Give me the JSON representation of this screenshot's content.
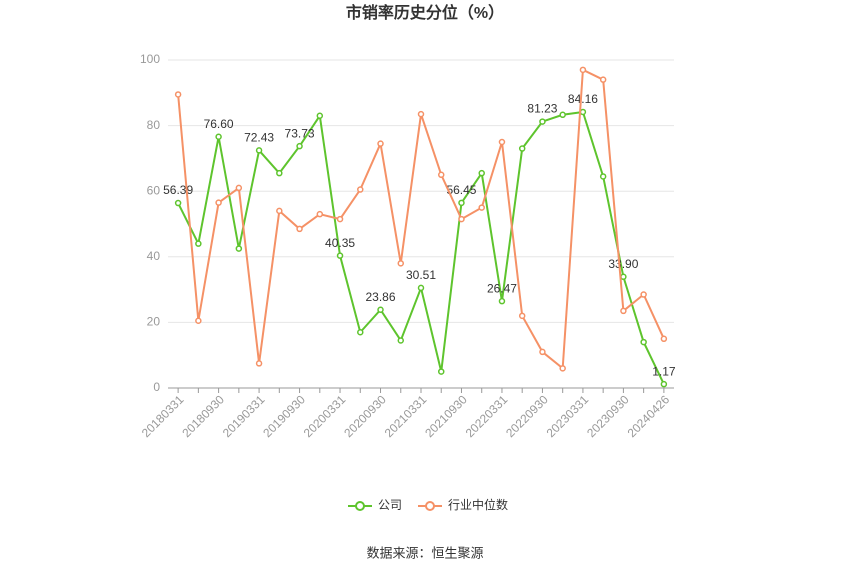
{
  "chart_data": {
    "type": "line",
    "title": "市销率历史分位（%）",
    "source": "数据来源：恒生聚源",
    "categories": [
      "20180331",
      null,
      "20180930",
      null,
      "20190331",
      null,
      "20190930",
      null,
      "20200331",
      null,
      "20200930",
      null,
      "20210331",
      null,
      "20210930",
      null,
      "20220331",
      null,
      "20220930",
      null,
      "20230331",
      null,
      "20230930",
      null,
      "20240426"
    ],
    "series": [
      {
        "name": "公司",
        "color": "#5ec42d",
        "values": [
          56.39,
          44,
          76.6,
          42.5,
          72.43,
          65.5,
          73.73,
          83,
          40.35,
          17,
          23.86,
          14.5,
          30.51,
          5,
          56.45,
          65.5,
          26.47,
          73,
          81.23,
          83.3,
          84.16,
          64.5,
          33.9,
          14,
          1.17
        ],
        "value_labels": [
          "56.39",
          null,
          "76.60",
          null,
          "72.43",
          null,
          "73.73",
          null,
          "40.35",
          null,
          "23.86",
          null,
          "30.51",
          null,
          "56.45",
          null,
          "26.47",
          null,
          "81.23",
          null,
          "84.16",
          null,
          "33.90",
          null,
          "1.17"
        ]
      },
      {
        "name": "行业中位数",
        "color": "#f59166",
        "values": [
          89.5,
          20.5,
          56.5,
          61,
          7.5,
          54,
          48.5,
          53,
          51.5,
          60.5,
          74.5,
          38,
          83.5,
          65,
          51.5,
          55,
          75,
          22,
          11,
          6,
          97,
          94,
          23.5,
          28.5,
          15
        ]
      }
    ],
    "ylim": [
      0,
      100
    ],
    "yticks": [
      0,
      20,
      40,
      60,
      80,
      100
    ],
    "grid": true
  }
}
